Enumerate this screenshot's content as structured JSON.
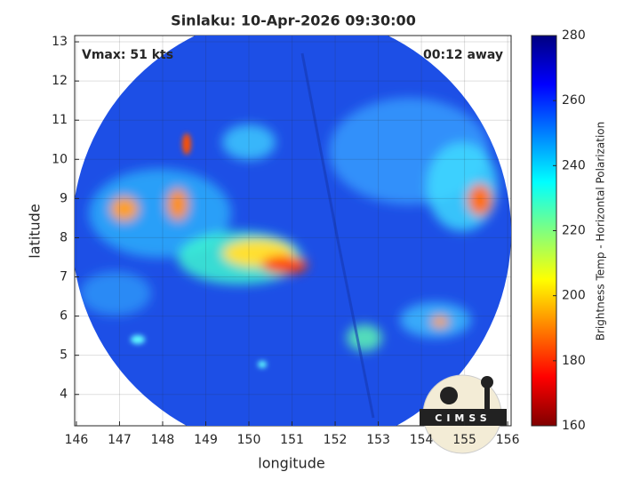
{
  "chart_data": {
    "type": "heatmap",
    "title": "Sinlaku: 10-Apr-2026 09:30:00",
    "annotations": [
      "Vmax: 51 kts",
      "00:12 away"
    ],
    "xlabel": "longitude",
    "ylabel": "latitude",
    "xlim": [
      145.96,
      156.08
    ],
    "xticks": [
      146,
      147,
      148,
      149,
      150,
      151,
      152,
      153,
      154,
      155,
      156
    ],
    "ylim": [
      3.2,
      13.16
    ],
    "yticks": [
      4,
      5,
      6,
      7,
      8,
      9,
      10,
      11,
      12,
      13
    ],
    "grid": true,
    "colorbar": {
      "label": "Brightness Temp - Horizontal Polarization",
      "lim": [
        160,
        280
      ],
      "ticks": [
        160,
        180,
        200,
        220,
        240,
        260,
        280
      ]
    },
    "logo": "CIMSS"
  }
}
